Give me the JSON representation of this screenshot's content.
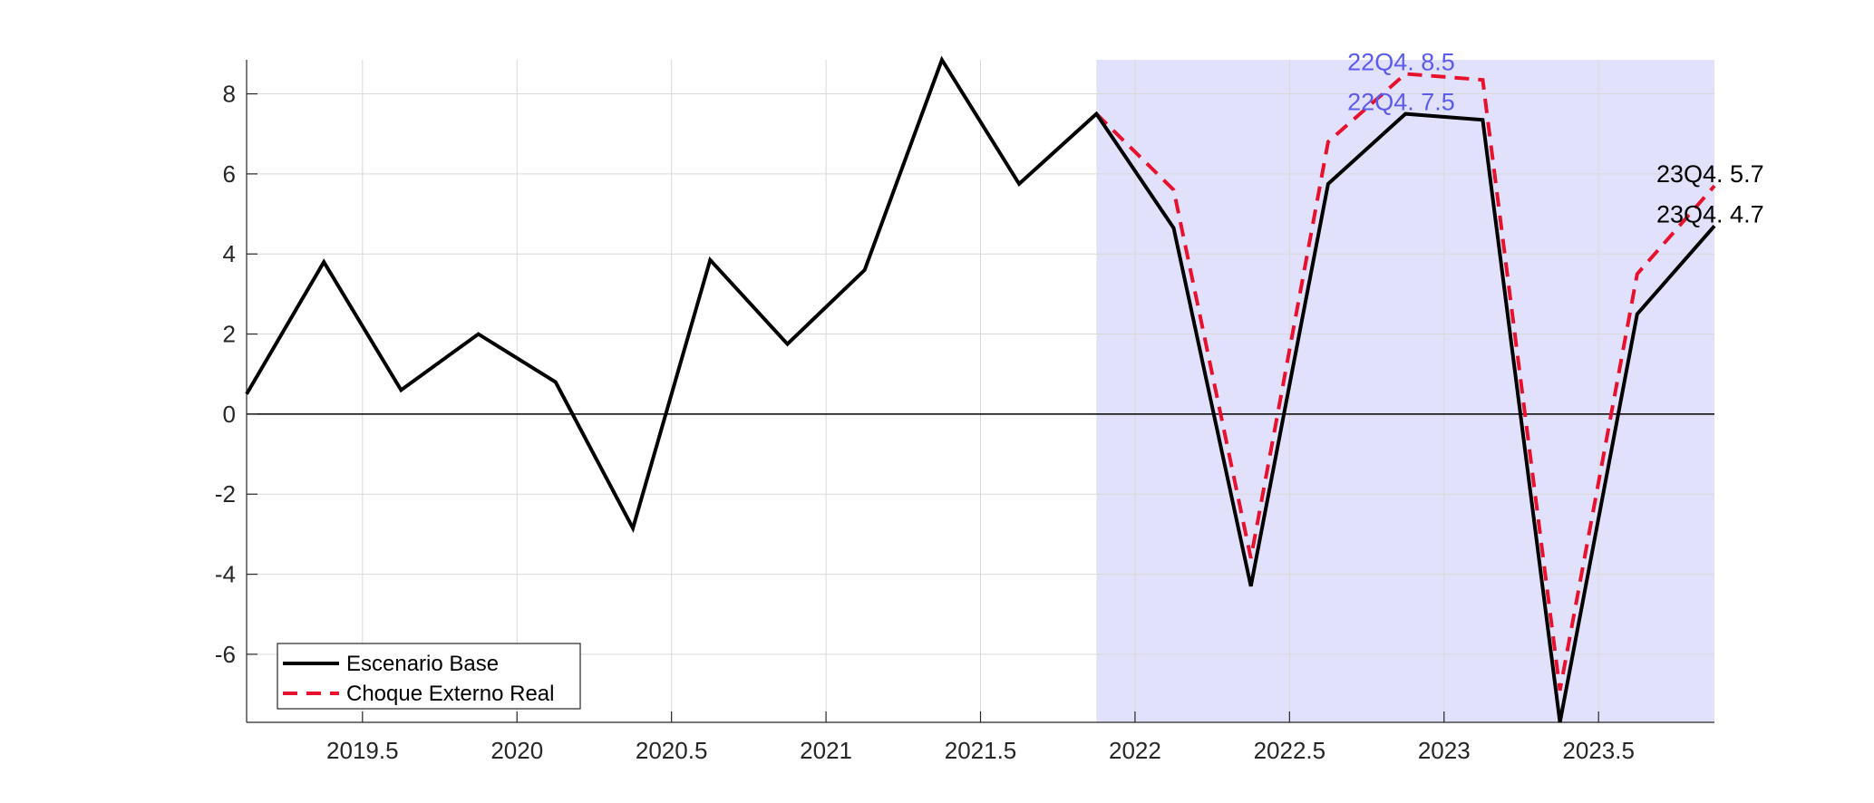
{
  "chart_data": {
    "type": "line",
    "x": [
      2019.125,
      2019.375,
      2019.625,
      2019.875,
      2020.125,
      2020.375,
      2020.625,
      2020.875,
      2021.125,
      2021.375,
      2021.625,
      2021.875,
      2022.125,
      2022.375,
      2022.625,
      2022.875,
      2023.125,
      2023.375,
      2023.625,
      2023.875
    ],
    "series": [
      {
        "name": "Escenario Base",
        "color": "#000000",
        "style": "solid",
        "x": [
          2019.125,
          2019.375,
          2019.625,
          2019.875,
          2020.125,
          2020.375,
          2020.625,
          2020.875,
          2021.125,
          2021.375,
          2021.625,
          2021.875,
          2022.125,
          2022.375,
          2022.625,
          2022.875,
          2023.125,
          2023.375,
          2023.625,
          2023.875
        ],
        "values": [
          0.5,
          3.8,
          0.6,
          2.0,
          0.8,
          -2.85,
          3.85,
          1.75,
          3.6,
          8.85,
          5.75,
          7.5,
          4.65,
          -4.3,
          5.75,
          7.5,
          7.35,
          -7.7,
          2.5,
          4.7
        ]
      },
      {
        "name": "Choque Externo Real",
        "color": "#e8112d",
        "style": "dashed",
        "x": [
          2021.875,
          2022.125,
          2022.375,
          2022.625,
          2022.875,
          2023.125,
          2023.375,
          2023.625,
          2023.875
        ],
        "values": [
          7.5,
          5.6,
          -3.6,
          6.8,
          8.5,
          8.35,
          -6.9,
          3.5,
          5.7
        ]
      }
    ],
    "xlim": [
      2019.125,
      2023.875
    ],
    "ylim": [
      -7.7,
      8.85
    ],
    "xticks": [
      2019.5,
      2020,
      2020.5,
      2021,
      2021.5,
      2022,
      2022.5,
      2023,
      2023.5
    ],
    "xtick_labels": [
      "2019.5",
      "2020",
      "2020.5",
      "2021",
      "2021.5",
      "2022",
      "2022.5",
      "2023",
      "2023.5"
    ],
    "yticks": [
      -6,
      -4,
      -2,
      0,
      2,
      4,
      6,
      8
    ],
    "ytick_labels": [
      "-6",
      "-4",
      "-2",
      "0",
      "2",
      "4",
      "6",
      "8"
    ],
    "grid": true,
    "shaded_region": {
      "x_start": 2021.875,
      "x_end": 2023.875,
      "color": "#e1e1fb"
    },
    "zero_line": true,
    "legend": {
      "position": "bottom-left",
      "entries": [
        "Escenario Base",
        "Choque Externo Real"
      ]
    },
    "annotations": [
      {
        "text": "22Q4. 8.5",
        "x": 2022.875,
        "y": 8.5,
        "color": "#5b5bf0"
      },
      {
        "text": "22Q4. 7.5",
        "x": 2022.875,
        "y": 7.5,
        "color": "#5b5bf0"
      },
      {
        "text": "23Q4. 5.7",
        "x": 2023.875,
        "y": 5.7,
        "color": "#000000"
      },
      {
        "text": "23Q4. 4.7",
        "x": 2023.875,
        "y": 4.7,
        "color": "#000000"
      }
    ]
  }
}
